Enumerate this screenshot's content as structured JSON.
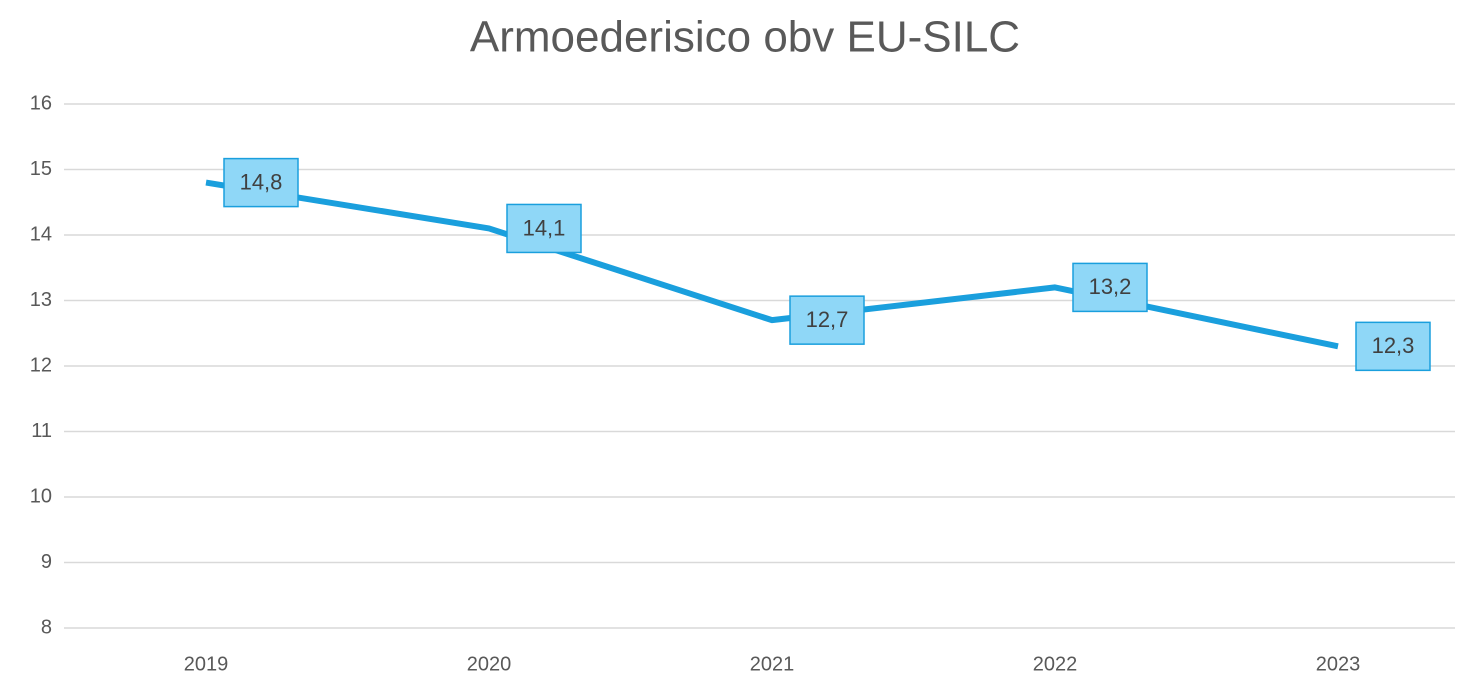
{
  "chart_data": {
    "type": "line",
    "title": "Armoederisico obv EU-SILC",
    "categories": [
      "2019",
      "2020",
      "2021",
      "2022",
      "2023"
    ],
    "values": [
      14.8,
      14.1,
      12.7,
      13.2,
      12.3
    ],
    "value_labels": [
      "14,8",
      "14,1",
      "12,7",
      "13,2",
      "12,3"
    ],
    "color": "#1a9fdd",
    "label_fill": "#8fd7f7",
    "ylim": [
      8,
      16
    ],
    "yticks": [
      8,
      9,
      10,
      11,
      12,
      13,
      14,
      15,
      16
    ],
    "grid": true
  }
}
